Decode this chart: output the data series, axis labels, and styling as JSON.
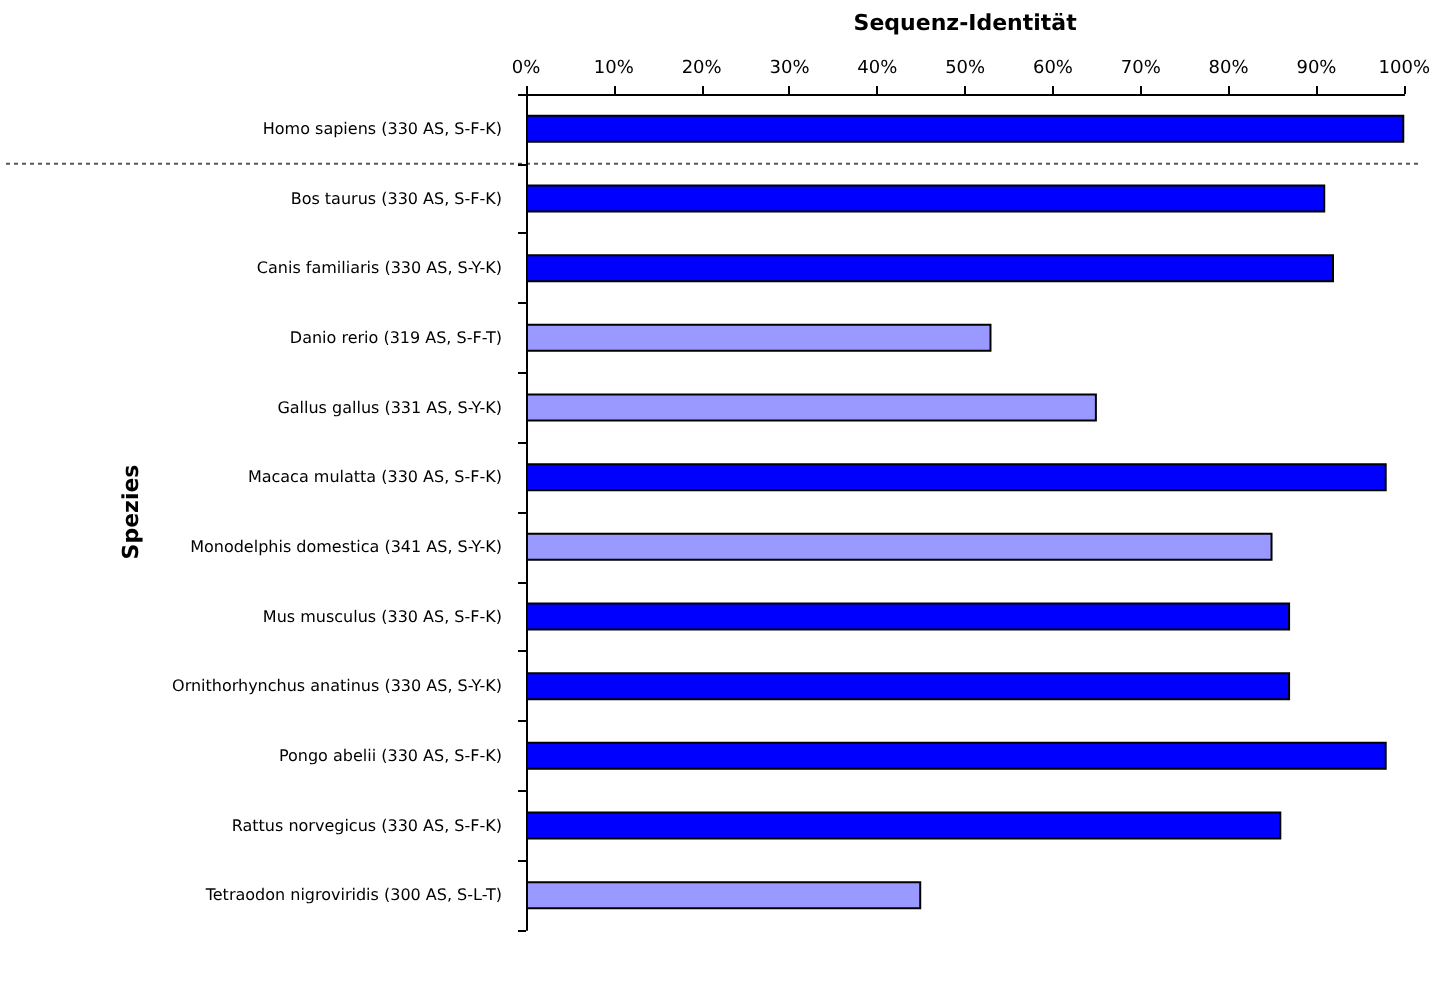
{
  "chart_data": {
    "type": "bar",
    "orientation": "horizontal",
    "xlabel": "Sequenz-Identität",
    "ylabel": "Spezies",
    "categories": [
      "Homo sapiens (330 AS, S-F-K)",
      "Bos taurus (330 AS, S-F-K)",
      "Canis familiaris (330 AS, S-Y-K)",
      "Danio rerio (319 AS, S-F-T)",
      "Gallus gallus (331 AS, S-Y-K)",
      "Macaca mulatta (330 AS, S-F-K)",
      "Monodelphis domestica (341 AS, S-Y-K)",
      "Mus musculus (330 AS, S-F-K)",
      "Ornithorhynchus anatinus (330 AS, S-Y-K)",
      "Pongo abelii (330 AS, S-F-K)",
      "Rattus norvegicus (330 AS, S-F-K)",
      "Tetraodon nigroviridis (300 AS, S-L-T)"
    ],
    "values": [
      100,
      91,
      92,
      53,
      65,
      98,
      85,
      87,
      87,
      98,
      86,
      45
    ],
    "colors": [
      "#0000ff",
      "#0000ff",
      "#0000ff",
      "#9999ff",
      "#9999ff",
      "#0000ff",
      "#9999ff",
      "#0000ff",
      "#0000ff",
      "#0000ff",
      "#0000ff",
      "#9999ff"
    ],
    "xlim": [
      0,
      100
    ],
    "xticks": [
      {
        "value": 0,
        "label": "0%"
      },
      {
        "value": 10,
        "label": "10%"
      },
      {
        "value": 20,
        "label": "20%"
      },
      {
        "value": 30,
        "label": "30%"
      },
      {
        "value": 40,
        "label": "40%"
      },
      {
        "value": 50,
        "label": "50%"
      },
      {
        "value": 60,
        "label": "60%"
      },
      {
        "value": 70,
        "label": "70%"
      },
      {
        "value": 80,
        "label": "80%"
      },
      {
        "value": 90,
        "label": "90%"
      },
      {
        "value": 100,
        "label": "100%"
      }
    ],
    "grid": false
  }
}
